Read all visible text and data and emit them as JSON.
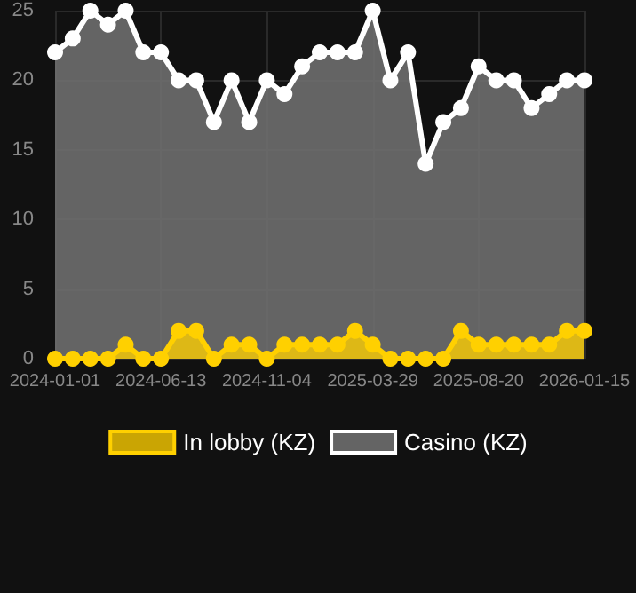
{
  "chart_data": {
    "type": "area",
    "categories": [
      "2024-01-01",
      null,
      null,
      null,
      null,
      null,
      "2024-06-13",
      null,
      null,
      null,
      null,
      null,
      "2024-11-04",
      null,
      null,
      null,
      null,
      null,
      "2025-03-29",
      null,
      null,
      null,
      null,
      null,
      "2025-08-20",
      null,
      null,
      null,
      null,
      null,
      "2026-01-15"
    ],
    "series": [
      {
        "name": "In lobby (KZ)",
        "color": "#ffd000",
        "values": [
          0,
          0,
          0,
          0,
          1,
          0,
          0,
          2,
          2,
          0,
          1,
          1,
          0,
          1,
          1,
          1,
          1,
          2,
          1,
          0,
          0,
          0,
          0,
          2,
          1,
          1,
          1,
          1,
          1,
          2,
          2
        ]
      },
      {
        "name": "Casino (KZ)",
        "color": "#ffffff",
        "values": [
          22,
          23,
          25,
          24,
          25,
          22,
          22,
          20,
          20,
          17,
          20,
          17,
          20,
          19,
          21,
          22,
          22,
          22,
          25,
          20,
          22,
          14,
          17,
          18,
          21,
          20,
          20,
          18,
          19,
          20,
          20
        ]
      }
    ],
    "ylim": [
      0,
      25
    ],
    "yticks": [
      0,
      5,
      10,
      15,
      20,
      25
    ],
    "grid": true,
    "legend": "bottom",
    "marker": "circle",
    "line_style": "solid"
  }
}
